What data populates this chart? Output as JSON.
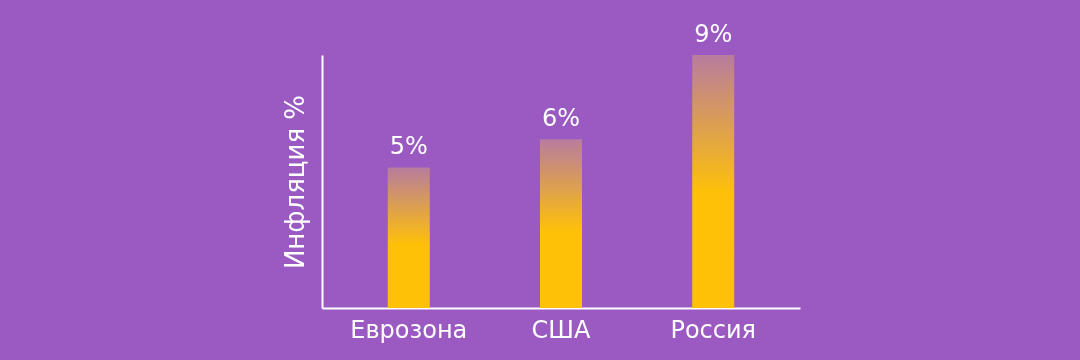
{
  "chart_data": {
    "type": "bar",
    "ylabel": "Инфляция %",
    "categories": [
      "Еврозона",
      "США",
      "Россия"
    ],
    "values": [
      5,
      6,
      9
    ],
    "value_labels": [
      "5%",
      "6%",
      "9%"
    ],
    "color": "#ffc107",
    "tick_labels": "x"
  }
}
